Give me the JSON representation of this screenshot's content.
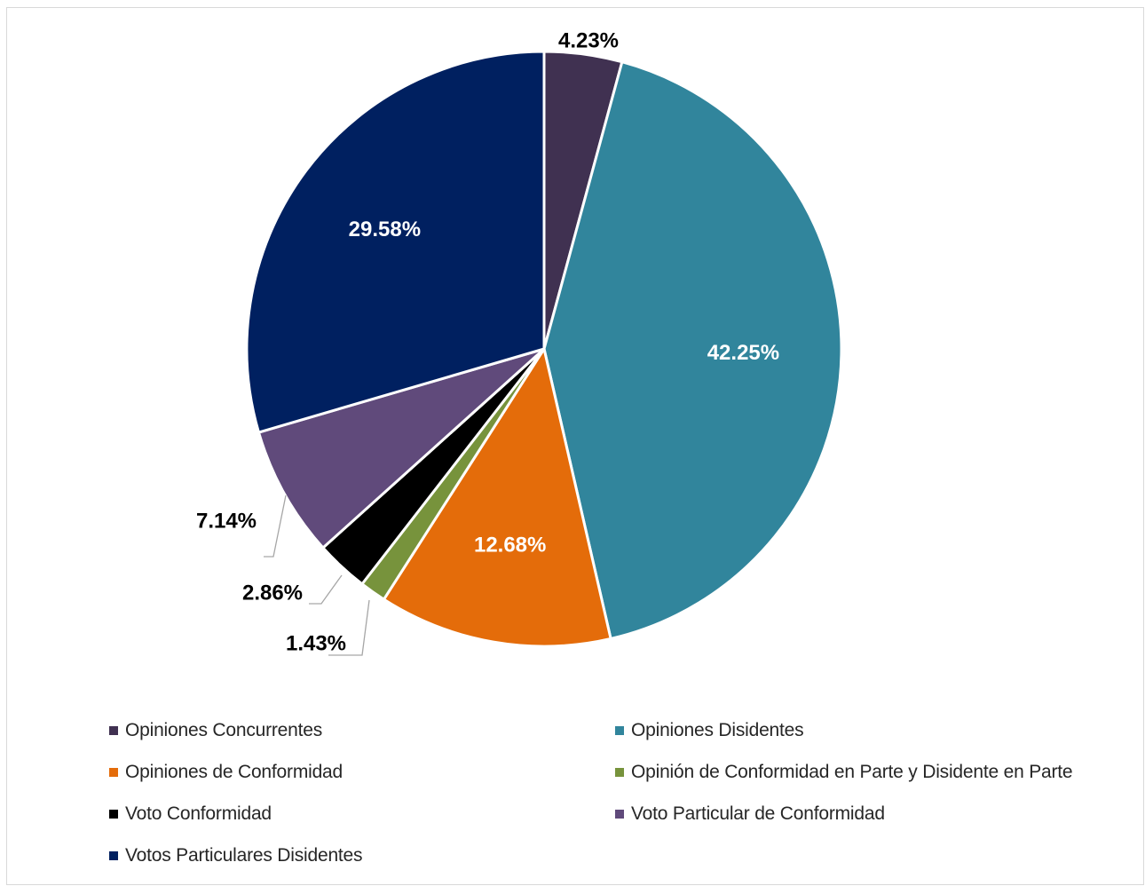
{
  "chart_data": {
    "type": "pie",
    "title": "",
    "slices": [
      {
        "name": "Opiniones Concurrentes",
        "value": 4.23,
        "label": "4.23%",
        "color": "#403151",
        "label_style": "dark-outside"
      },
      {
        "name": "Opiniones Disidentes",
        "value": 42.25,
        "label": "42.25%",
        "color": "#31859C",
        "label_style": "light-inside"
      },
      {
        "name": "Opiniones de Conformidad",
        "value": 12.68,
        "label": "12.68%",
        "color": "#E46C0A",
        "label_style": "light-inside"
      },
      {
        "name": "Opinión de Conformidad en Parte y Disidente en Parte",
        "value": 1.43,
        "label": "1.43%",
        "color": "#77933C",
        "label_style": "dark-leader"
      },
      {
        "name": "Voto Conformidad",
        "value": 2.86,
        "label": "2.86%",
        "color": "#000000",
        "label_style": "dark-leader"
      },
      {
        "name": "Voto Particular de Conformidad",
        "value": 7.14,
        "label": "7.14%",
        "color": "#604A7B",
        "label_style": "dark-leader"
      },
      {
        "name": "Votos Particulares Disidentes",
        "value": 29.58,
        "label": "29.58%",
        "color": "#002060",
        "label_style": "light-inside"
      }
    ],
    "legend_position": "bottom",
    "legend_columns": 2
  }
}
